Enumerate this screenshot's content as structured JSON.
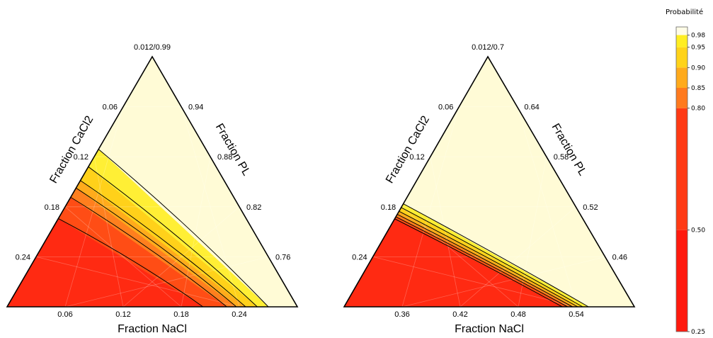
{
  "chart_data": [
    {
      "type": "ternary-contour",
      "apex_label": "0.012/0.99",
      "left_axis": {
        "label": "Fraction CaCl2",
        "ticks": [
          "0.06",
          "0.12",
          "0.18",
          "0.24"
        ]
      },
      "right_axis": {
        "label": "Fraction PL",
        "ticks": [
          "0.94",
          "0.88",
          "0.82",
          "0.76"
        ]
      },
      "bottom_axis": {
        "label": "Fraction NaCl",
        "ticks": [
          "0.06",
          "0.12",
          "0.18",
          "0.24"
        ]
      },
      "contour_boundaries_along_bottom": [
        {
          "level": 0.5,
          "bottom_fraction": 0.675,
          "top_fraction": 0.353
        },
        {
          "level": 0.8,
          "bottom_fraction": 0.757,
          "top_fraction": 0.438
        },
        {
          "level": 0.85,
          "bottom_fraction": 0.79,
          "top_fraction": 0.475
        },
        {
          "level": 0.9,
          "bottom_fraction": 0.822,
          "top_fraction": 0.505
        },
        {
          "level": 0.95,
          "bottom_fraction": 0.862,
          "top_fraction": 0.56
        },
        {
          "level": 0.98,
          "bottom_fraction": 0.9,
          "top_fraction": 0.63
        }
      ]
    },
    {
      "type": "ternary-contour",
      "apex_label": "0.012/0.7",
      "left_axis": {
        "label": "Fraction CaCl2",
        "ticks": [
          "0.06",
          "0.12",
          "0.18",
          "0.24"
        ]
      },
      "right_axis": {
        "label": "Fraction PL",
        "ticks": [
          "0.64",
          "0.58",
          "0.52",
          "0.46"
        ]
      },
      "bottom_axis": {
        "label": "Fraction NaCl",
        "ticks": [
          "0.36",
          "0.42",
          "0.48",
          "0.54"
        ]
      },
      "contour_boundaries_along_bottom": [
        {
          "level": 0.5,
          "bottom_fraction": 0.752,
          "top_fraction": 0.352
        },
        {
          "level": 0.8,
          "bottom_fraction": 0.77,
          "top_fraction": 0.36
        },
        {
          "level": 0.85,
          "bottom_fraction": 0.787,
          "top_fraction": 0.37
        },
        {
          "level": 0.9,
          "bottom_fraction": 0.805,
          "top_fraction": 0.382
        },
        {
          "level": 0.95,
          "bottom_fraction": 0.822,
          "top_fraction": 0.397
        },
        {
          "level": 0.98,
          "bottom_fraction": 0.842,
          "top_fraction": 0.412
        }
      ]
    }
  ],
  "colorbar": {
    "title": "Probabilité",
    "levels": [
      0.25,
      0.5,
      0.8,
      0.85,
      0.9,
      0.95,
      0.98,
      1.0
    ],
    "tick_labels": [
      "0.25",
      "0.50",
      "0.80",
      "0.85",
      "0.90",
      "0.95",
      "0.98"
    ],
    "colors": [
      "#ff1a0e",
      "#ff3a14",
      "#ff7a1e",
      "#ffaa1c",
      "#ffd31a",
      "#ffee22",
      "#fff3a0",
      "#fffce6"
    ]
  },
  "colors": {
    "region_0": "#ff2a12",
    "region_1": "#ff4d15",
    "region_2": "#ff7f1e",
    "region_3": "#ffab1c",
    "region_4": "#ffd11a",
    "region_5": "#ffef35",
    "region_6": "#fffbd6",
    "outline": "#000000",
    "grid": "rgba(255,255,255,0.25)"
  }
}
